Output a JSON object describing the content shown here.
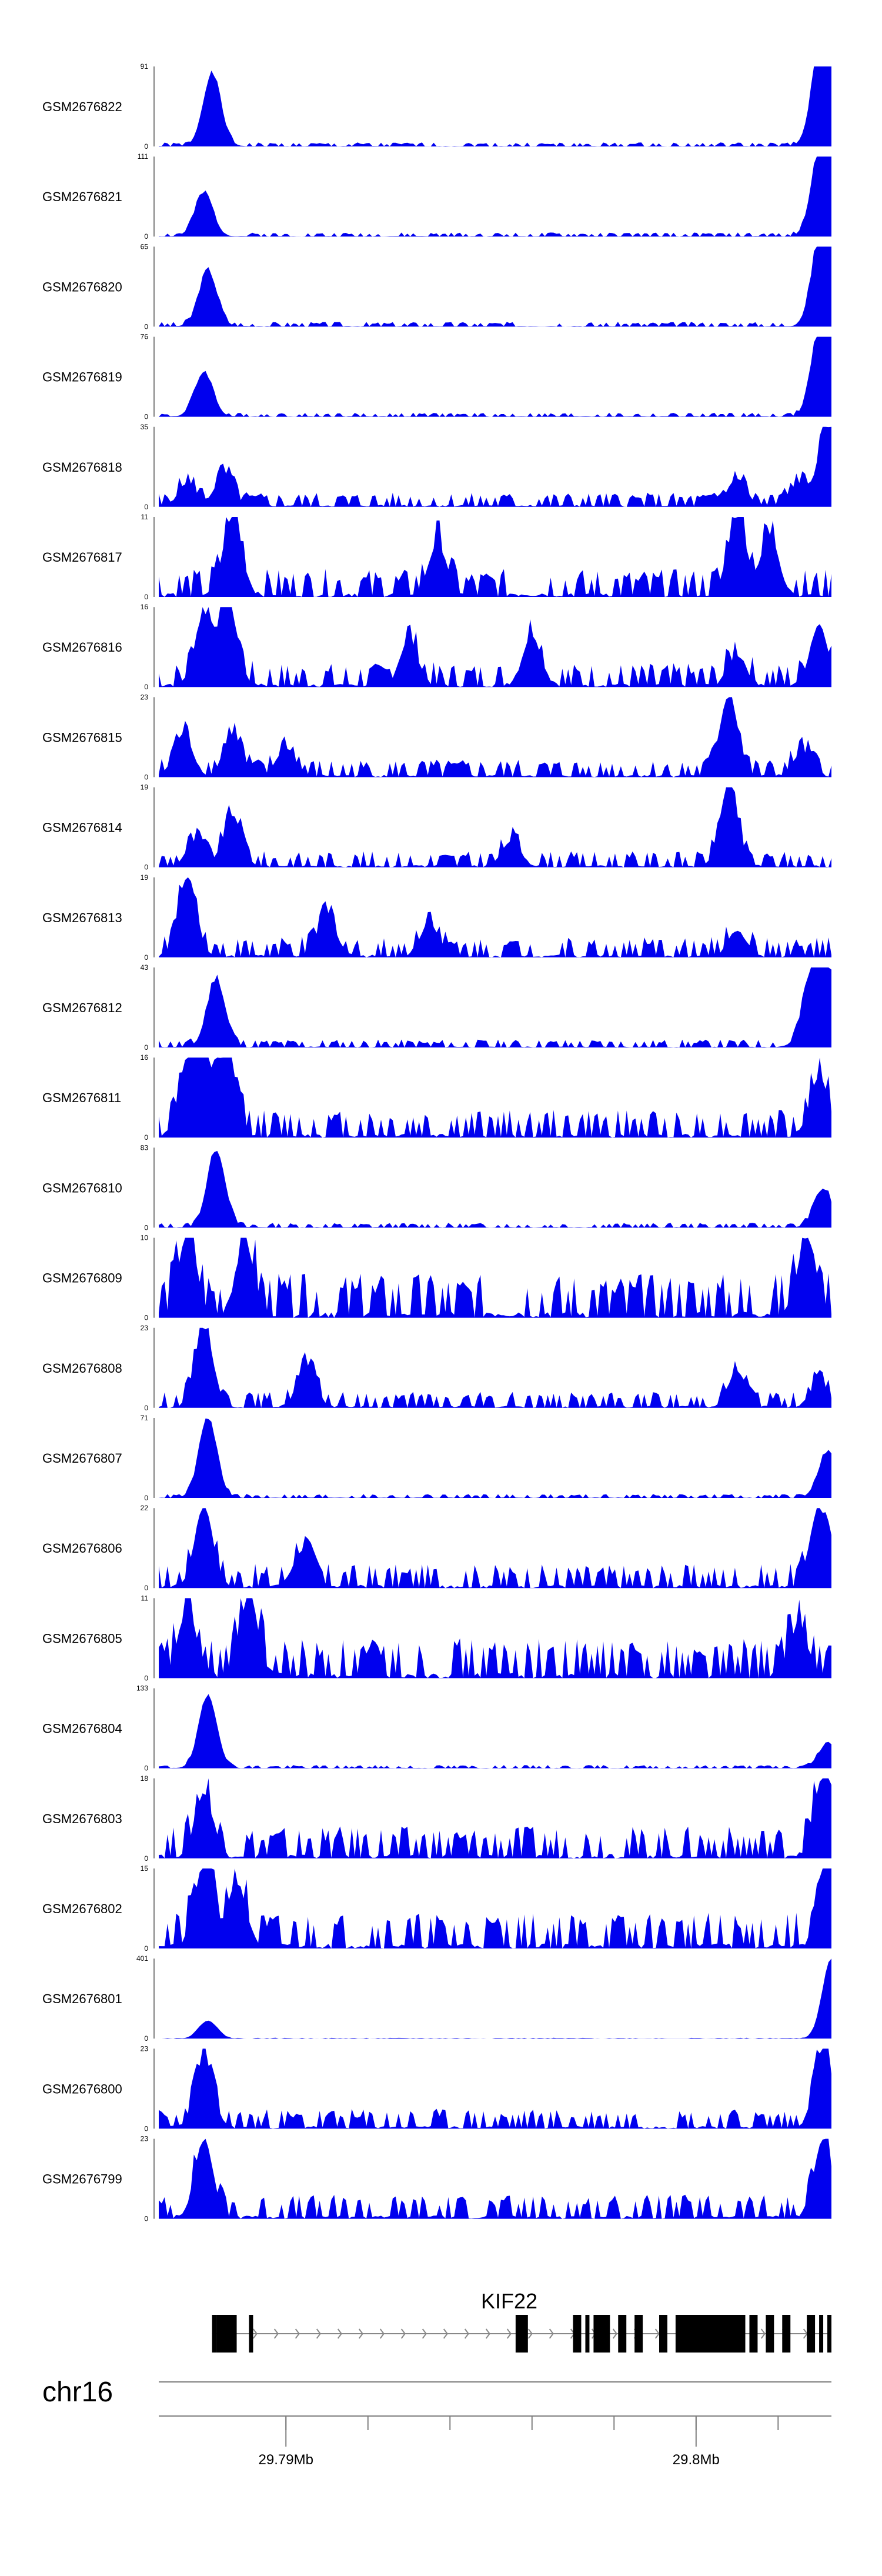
{
  "chart_data": {
    "type": "area",
    "xlim": [
      29.7869,
      29.8033
    ],
    "genome_axis": {
      "chromosome": "chr16",
      "tick_labels": [
        {
          "x": 29.79,
          "label": "29.79Mb"
        },
        {
          "x": 29.8,
          "label": "29.8Mb"
        }
      ],
      "minor_ticks": [
        29.79,
        29.792,
        29.794,
        29.796,
        29.798,
        29.8,
        29.802
      ]
    },
    "gene": {
      "name": "KIF22",
      "start": 29.7882,
      "end": 29.8032,
      "strand": "+",
      "exons": [
        [
          29.7882,
          29.7883
        ],
        [
          29.7883,
          29.7888
        ],
        [
          29.7891,
          29.7892
        ],
        [
          29.7956,
          29.7959
        ],
        [
          29.797,
          29.7972
        ],
        [
          29.7973,
          29.7974
        ],
        [
          29.7975,
          29.7979
        ],
        [
          29.7981,
          29.7983
        ],
        [
          29.7985,
          29.7987
        ],
        [
          29.7991,
          29.7993
        ],
        [
          29.7995,
          29.8012
        ],
        [
          29.8013,
          29.8015
        ],
        [
          29.8017,
          29.8019
        ],
        [
          29.8021,
          29.8023
        ],
        [
          29.8027,
          29.8029
        ],
        [
          29.803,
          29.8031
        ],
        [
          29.8032,
          29.8033
        ]
      ]
    },
    "tracks": [
      {
        "name": "GSM2676822",
        "ymax": "91",
        "peaks": [
          [
            29.7882,
            82
          ],
          [
            29.8032,
            90
          ],
          [
            29.803,
            70
          ]
        ],
        "noise": 0.05,
        "seed": 1
      },
      {
        "name": "GSM2676821",
        "ymax": "111",
        "peaks": [
          [
            29.788,
            60
          ],
          [
            29.8032,
            100
          ],
          [
            29.803,
            80
          ]
        ],
        "noise": 0.05,
        "seed": 2
      },
      {
        "name": "GSM2676820",
        "ymax": "65",
        "peaks": [
          [
            29.7881,
            45
          ],
          [
            29.8032,
            60
          ],
          [
            29.803,
            45
          ]
        ],
        "noise": 0.06,
        "seed": 3
      },
      {
        "name": "GSM2676819",
        "ymax": "76",
        "peaks": [
          [
            29.788,
            42
          ],
          [
            29.8032,
            72
          ],
          [
            29.803,
            55
          ]
        ],
        "noise": 0.05,
        "seed": 4
      },
      {
        "name": "GSM2676818",
        "ymax": "35",
        "peaks": [
          [
            29.7876,
            10
          ],
          [
            29.7885,
            14
          ],
          [
            29.801,
            12
          ],
          [
            29.8025,
            10
          ],
          [
            29.8032,
            35
          ]
        ],
        "noise": 0.18,
        "seed": 5
      },
      {
        "name": "GSM2676817",
        "ymax": "11",
        "peaks": [
          [
            29.7887,
            11
          ],
          [
            29.801,
            11
          ],
          [
            29.7937,
            7
          ],
          [
            29.8018,
            8
          ]
        ],
        "noise": 0.35,
        "seed": 6
      },
      {
        "name": "GSM2676816",
        "ymax": "16",
        "peaks": [
          [
            29.7886,
            16
          ],
          [
            29.788,
            14
          ],
          [
            29.796,
            10
          ],
          [
            29.793,
            9
          ],
          [
            29.801,
            6
          ],
          [
            29.803,
            12
          ]
        ],
        "noise": 0.3,
        "seed": 7
      },
      {
        "name": "GSM2676815",
        "ymax": "23",
        "peaks": [
          [
            29.8008,
            23
          ],
          [
            29.7887,
            12
          ],
          [
            29.7875,
            12
          ],
          [
            29.79,
            8
          ],
          [
            29.8026,
            7
          ]
        ],
        "noise": 0.22,
        "seed": 8
      },
      {
        "name": "GSM2676814",
        "ymax": "19",
        "peaks": [
          [
            29.8008,
            19
          ],
          [
            29.7887,
            12
          ],
          [
            29.7878,
            6
          ],
          [
            29.7955,
            6
          ]
        ],
        "noise": 0.2,
        "seed": 9
      },
      {
        "name": "GSM2676813",
        "ymax": "19",
        "peaks": [
          [
            29.7876,
            19
          ],
          [
            29.791,
            10
          ],
          [
            29.7935,
            8
          ],
          [
            29.801,
            6
          ]
        ],
        "noise": 0.25,
        "seed": 10
      },
      {
        "name": "GSM2676812",
        "ymax": "43",
        "peaks": [
          [
            29.7883,
            36
          ],
          [
            29.8028,
            35
          ],
          [
            29.8032,
            43
          ]
        ],
        "noise": 0.1,
        "seed": 11
      },
      {
        "name": "GSM2676811",
        "ymax": "16",
        "peaks": [
          [
            29.788,
            15
          ],
          [
            29.7886,
            15
          ],
          [
            29.7876,
            14
          ],
          [
            29.803,
            12
          ]
        ],
        "noise": 0.35,
        "seed": 12
      },
      {
        "name": "GSM2676810",
        "ymax": "83",
        "peaks": [
          [
            29.7883,
            80
          ],
          [
            29.8031,
            40
          ]
        ],
        "noise": 0.06,
        "seed": 13
      },
      {
        "name": "GSM2676809",
        "ymax": "10",
        "peaks": [
          [
            29.8027,
            10
          ],
          [
            29.7876,
            10
          ],
          [
            29.789,
            9
          ]
        ],
        "noise": 0.55,
        "seed": 14
      },
      {
        "name": "GSM2676808",
        "ymax": "23",
        "peaks": [
          [
            29.788,
            23
          ],
          [
            29.7905,
            12
          ],
          [
            29.801,
            10
          ],
          [
            29.803,
            7
          ]
        ],
        "noise": 0.2,
        "seed": 15
      },
      {
        "name": "GSM2676807",
        "ymax": "71",
        "peaks": [
          [
            29.7881,
            70
          ],
          [
            29.8032,
            40
          ]
        ],
        "noise": 0.05,
        "seed": 16
      },
      {
        "name": "GSM2676806",
        "ymax": "22",
        "peaks": [
          [
            29.788,
            22
          ],
          [
            29.7904,
            10
          ],
          [
            29.803,
            22
          ]
        ],
        "noise": 0.3,
        "seed": 17
      },
      {
        "name": "GSM2676805",
        "ymax": "11",
        "peaks": [
          [
            29.7891,
            11
          ],
          [
            29.7876,
            9
          ],
          [
            29.8025,
            7
          ]
        ],
        "noise": 0.5,
        "seed": 18
      },
      {
        "name": "GSM2676804",
        "ymax": "133",
        "peaks": [
          [
            29.7881,
            120
          ],
          [
            29.8032,
            40
          ]
        ],
        "noise": 0.04,
        "seed": 19
      },
      {
        "name": "GSM2676803",
        "ymax": "18",
        "peaks": [
          [
            29.788,
            14
          ],
          [
            29.8031,
            18
          ]
        ],
        "noise": 0.4,
        "seed": 20
      },
      {
        "name": "GSM2676802",
        "ymax": "15",
        "peaks": [
          [
            29.788,
            15
          ],
          [
            29.7888,
            12
          ],
          [
            29.8032,
            13
          ]
        ],
        "noise": 0.45,
        "seed": 21
      },
      {
        "name": "GSM2676801",
        "ymax": "401",
        "peaks": [
          [
            29.7881,
            90
          ],
          [
            29.8033,
            401
          ]
        ],
        "noise": 0.01,
        "seed": 22
      },
      {
        "name": "GSM2676800",
        "ymax": "23",
        "peaks": [
          [
            29.788,
            20
          ],
          [
            29.8031,
            23
          ]
        ],
        "noise": 0.25,
        "seed": 23
      },
      {
        "name": "GSM2676799",
        "ymax": "23",
        "peaks": [
          [
            29.788,
            22
          ],
          [
            29.8031,
            22
          ]
        ],
        "noise": 0.3,
        "seed": 24
      }
    ]
  },
  "colors": {
    "signal": "#0000ee",
    "gene": "#000000",
    "axis": "#000000",
    "tick": "#7f7f7f"
  }
}
